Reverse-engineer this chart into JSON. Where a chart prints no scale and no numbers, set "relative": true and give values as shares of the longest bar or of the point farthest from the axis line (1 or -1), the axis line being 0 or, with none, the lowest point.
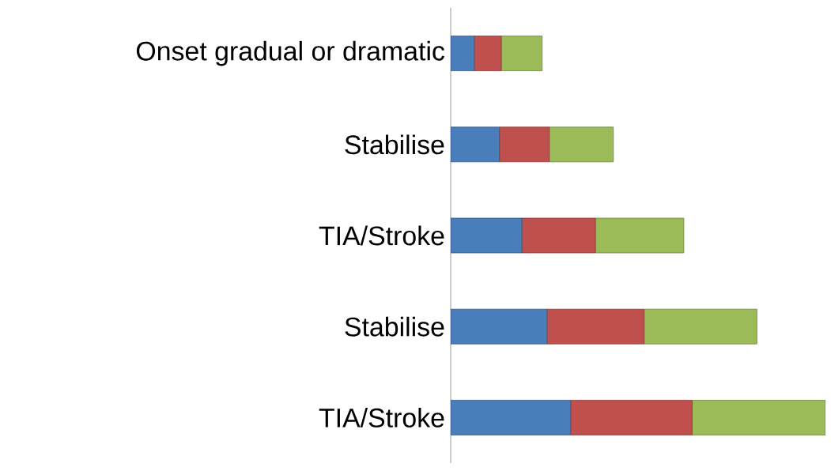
{
  "chart_data": {
    "type": "bar",
    "orientation": "horizontal",
    "stacked": true,
    "relative": true,
    "categories": [
      "Onset gradual or dramatic",
      "Stabilise",
      "TIA/Stroke",
      "Stabilise",
      "TIA/Stroke"
    ],
    "series": [
      {
        "color": "#4a7ebb",
        "values": [
          0.063,
          0.13,
          0.19,
          0.257,
          0.32
        ]
      },
      {
        "color": "#c0504d",
        "values": [
          0.072,
          0.133,
          0.196,
          0.259,
          0.324
        ]
      },
      {
        "color": "#9bbb59",
        "values": [
          0.109,
          0.171,
          0.236,
          0.301,
          0.356
        ]
      }
    ]
  }
}
